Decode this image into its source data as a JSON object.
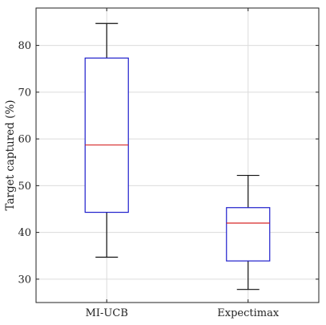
{
  "chart_data": {
    "type": "box",
    "title": "",
    "xlabel": "",
    "ylabel": "Target captured (%)",
    "ylim": [
      25,
      88
    ],
    "yticks": [
      30,
      40,
      50,
      60,
      70,
      80
    ],
    "grid": true,
    "categories": [
      "MI-UCB",
      "Expectimax"
    ],
    "boxes": [
      {
        "name": "MI-UCB",
        "whisker_low": 34.7,
        "q1": 44.3,
        "median": 58.7,
        "q3": 77.3,
        "whisker_high": 84.7
      },
      {
        "name": "Expectimax",
        "whisker_low": 27.8,
        "q1": 33.9,
        "median": 42.0,
        "q3": 45.3,
        "whisker_high": 52.2
      }
    ],
    "colors": {
      "box": "#1f1fcc",
      "median": "#d62728",
      "whisker": "#111111",
      "grid": "#dcdcdc"
    }
  }
}
